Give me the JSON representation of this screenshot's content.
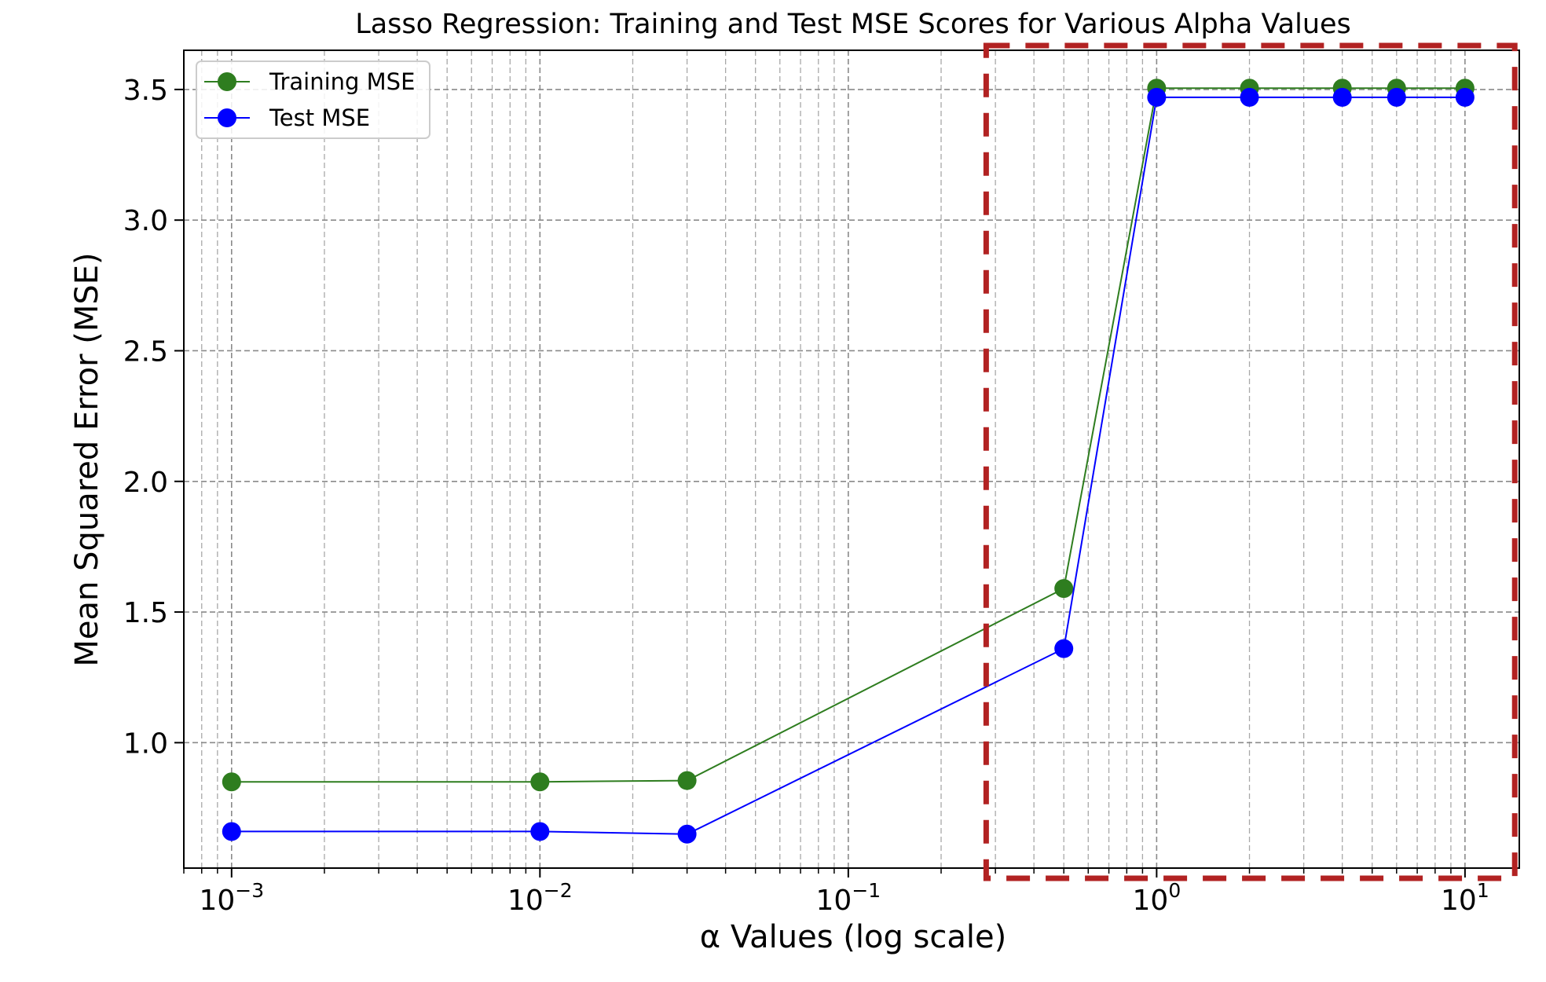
{
  "chart_data": {
    "type": "line",
    "title": "Lasso Regression: Training and Test MSE Scores for Various Alpha Values",
    "xlabel": "α Values (log scale)",
    "ylabel": "Mean Squared Error (MSE)",
    "xscale": "log",
    "xlim": [
      0.0007,
      15
    ],
    "ylim": [
      0.52,
      3.65
    ],
    "grid": "on (major and minor, dashed)",
    "legend_position": "top-left",
    "x_ticks": [
      {
        "value": 0.001,
        "base": "10",
        "exp": "−3"
      },
      {
        "value": 0.01,
        "base": "10",
        "exp": "−2"
      },
      {
        "value": 0.1,
        "base": "10",
        "exp": "−1"
      },
      {
        "value": 1,
        "base": "10",
        "exp": "0"
      },
      {
        "value": 10,
        "base": "10",
        "exp": "1"
      }
    ],
    "y_ticks": [
      {
        "value": 1.0,
        "label": "1.0"
      },
      {
        "value": 1.5,
        "label": "1.5"
      },
      {
        "value": 2.0,
        "label": "2.0"
      },
      {
        "value": 2.5,
        "label": "2.5"
      },
      {
        "value": 3.0,
        "label": "3.0"
      },
      {
        "value": 3.5,
        "label": "3.5"
      }
    ],
    "x": [
      0.001,
      0.01,
      0.03,
      0.5,
      1,
      2,
      4,
      6,
      10
    ],
    "series": [
      {
        "name": "Training MSE",
        "color": "#2e7d1f",
        "values": [
          0.85,
          0.85,
          0.855,
          1.59,
          3.505,
          3.505,
          3.505,
          3.505,
          3.505
        ]
      },
      {
        "name": "Test MSE",
        "color": "#0000ff",
        "values": [
          0.66,
          0.66,
          0.65,
          1.36,
          3.47,
          3.47,
          3.47,
          3.47,
          3.47
        ]
      }
    ],
    "highlight_box": {
      "x_from": 0.28,
      "x_to": 14.5,
      "color": "#b22222",
      "style": "dashed"
    }
  }
}
